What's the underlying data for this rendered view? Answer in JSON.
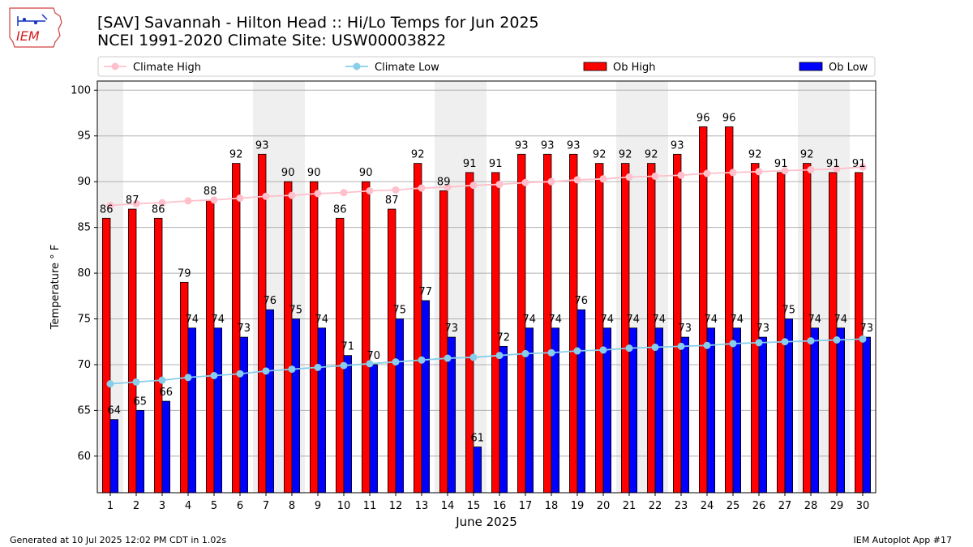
{
  "header": {
    "title_line1": "[SAV] Savannah - Hilton Head :: Hi/Lo Temps for Jun 2025",
    "title_line2": "NCEI 1991-2020 Climate Site: USW00003822",
    "logo_text": "IEM"
  },
  "footer": {
    "generated": "Generated at 10 Jul 2025 12:02 PM CDT in 1.02s",
    "app": "IEM Autoplot App #17"
  },
  "colors": {
    "ob_high": "#ff0000",
    "ob_low": "#0000ff",
    "climate_high": "#ffc0cb",
    "climate_low": "#87ceeb",
    "weekend_shade": "#efefef"
  },
  "chart_data": {
    "type": "bar",
    "xlabel": "June 2025",
    "ylabel": "Temperature ° F",
    "ylim": [
      56,
      101
    ],
    "yticks": [
      60,
      65,
      70,
      75,
      80,
      85,
      90,
      95,
      100
    ],
    "grid": true,
    "legend_position": "top",
    "categories": [
      "1",
      "2",
      "3",
      "4",
      "5",
      "6",
      "7",
      "8",
      "9",
      "10",
      "11",
      "12",
      "13",
      "14",
      "15",
      "16",
      "17",
      "18",
      "19",
      "20",
      "21",
      "22",
      "23",
      "24",
      "25",
      "26",
      "27",
      "28",
      "29",
      "30"
    ],
    "shaded_days": [
      1,
      7,
      8,
      14,
      15,
      21,
      22,
      28,
      29
    ],
    "series": [
      {
        "name": "Climate High",
        "kind": "line",
        "values": [
          87.4,
          87.6,
          87.7,
          87.9,
          88.0,
          88.2,
          88.4,
          88.5,
          88.7,
          88.8,
          89.0,
          89.1,
          89.3,
          89.4,
          89.6,
          89.7,
          89.9,
          90.0,
          90.2,
          90.3,
          90.5,
          90.6,
          90.7,
          90.9,
          91.0,
          91.1,
          91.2,
          91.3,
          91.4,
          91.6
        ]
      },
      {
        "name": "Climate Low",
        "kind": "line",
        "values": [
          67.9,
          68.1,
          68.3,
          68.6,
          68.8,
          69.0,
          69.3,
          69.5,
          69.7,
          69.9,
          70.1,
          70.3,
          70.5,
          70.7,
          70.8,
          71.0,
          71.2,
          71.3,
          71.5,
          71.6,
          71.8,
          71.9,
          72.0,
          72.1,
          72.3,
          72.4,
          72.5,
          72.6,
          72.7,
          72.8
        ]
      },
      {
        "name": "Ob High",
        "kind": "bar",
        "values": [
          86,
          87,
          86,
          79,
          88,
          92,
          93,
          90,
          90,
          86,
          90,
          87,
          92,
          89,
          91,
          91,
          93,
          93,
          93,
          92,
          92,
          92,
          93,
          96,
          96,
          92,
          91,
          92,
          91,
          91
        ]
      },
      {
        "name": "Ob Low",
        "kind": "bar",
        "values": [
          64,
          65,
          66,
          74,
          74,
          73,
          76,
          75,
          74,
          71,
          70,
          75,
          77,
          73,
          61,
          72,
          74,
          74,
          76,
          74,
          74,
          74,
          73,
          74,
          74,
          73,
          75,
          74,
          74,
          73
        ]
      }
    ]
  }
}
